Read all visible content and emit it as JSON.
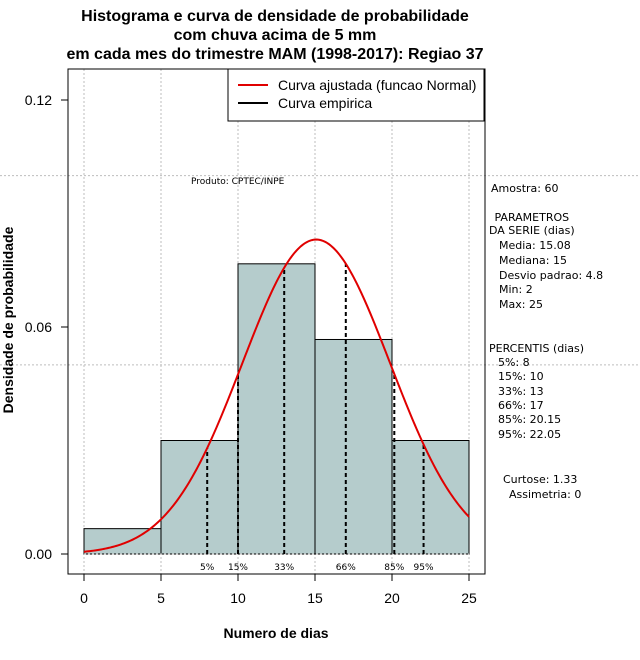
{
  "chart_data": {
    "type": "histogram",
    "title_lines": [
      "Histograma e curva de densidade de probabilidade",
      "com chuva acima de 5 mm",
      "em cada mes do trimestre MAM (1998-2017): Regiao 37"
    ],
    "xlabel": "Numero de dias",
    "ylabel": "Densidade de probabilidade",
    "xlim": [
      -1,
      26
    ],
    "ylim": [
      -0.004,
      0.12
    ],
    "x_ticks": [
      0,
      5,
      10,
      15,
      20,
      25
    ],
    "y_ticks": [
      0.0,
      0.06,
      0.12
    ],
    "y_tick_labels": [
      "0.00",
      "0.06",
      "0.12"
    ],
    "grid_y": [
      0.1,
      0.05
    ],
    "grid_x": [
      0,
      5,
      10,
      15,
      20,
      25
    ],
    "bins": [
      {
        "from": 0,
        "to": 5,
        "density": 0.0067
      },
      {
        "from": 5,
        "to": 10,
        "density": 0.03
      },
      {
        "from": 10,
        "to": 15,
        "density": 0.0767
      },
      {
        "from": 15,
        "to": 20,
        "density": 0.0567
      },
      {
        "from": 20,
        "to": 25,
        "density": 0.03
      }
    ],
    "bar_color": "#b5cccc",
    "normal_fit": {
      "mean": 15.08,
      "sd": 4.8,
      "x_from": 0,
      "x_to": 25,
      "color": "#e00000"
    },
    "percentile_lines": [
      {
        "label": "5%",
        "x": 8
      },
      {
        "label": "15%",
        "x": 10
      },
      {
        "label": "33%",
        "x": 13
      },
      {
        "label": "66%",
        "x": 17
      },
      {
        "label": "85%",
        "x": 20.15
      },
      {
        "label": "95%",
        "x": 22.05
      }
    ],
    "legend": [
      {
        "label": "Curva ajustada (funcao Normal)",
        "color": "#e00000"
      },
      {
        "label": "Curva empirica",
        "color": "#000000"
      }
    ],
    "legend_position": "top-right",
    "annotation": "Produto: CPTEC/INPE"
  },
  "side_panel": {
    "amostra": "Amostra: 60",
    "parametros_title_1": " PARAMETROS",
    "parametros_title_2": "DA SERIE (dias)",
    "media": "Media: 15.08",
    "mediana": "Mediana: 15",
    "desvio": "Desvio padrao: 4.8",
    "min": "Min: 2",
    "max": "Max: 25",
    "percentis_title": "PERCENTIS (dias)",
    "p5": "5%: 8",
    "p15": "15%: 10",
    "p33": "33%: 13",
    "p66": "66%: 17",
    "p85": "85%: 20.15",
    "p95": "95%: 22.05",
    "curtose": "Curtose: 1.33",
    "assimetria": "Assimetria: 0"
  }
}
